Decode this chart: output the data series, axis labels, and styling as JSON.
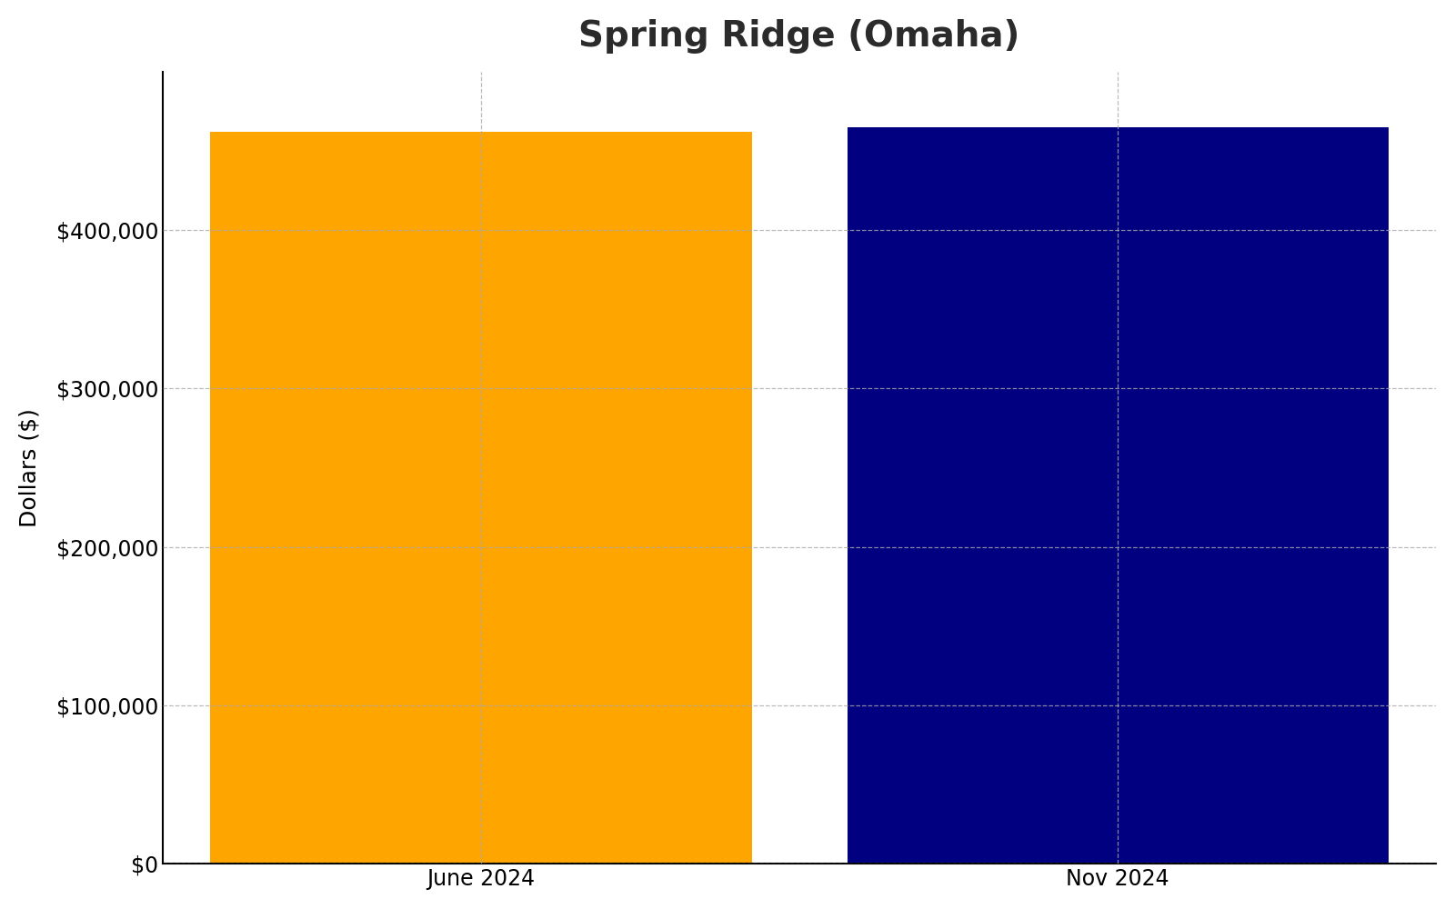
{
  "title": "Spring Ridge (Omaha)",
  "categories": [
    "June 2024",
    "Nov 2024"
  ],
  "values": [
    462000,
    465000
  ],
  "bar_colors": [
    "#FFA500",
    "#000080"
  ],
  "ylabel": "Dollars ($)",
  "ylim": [
    0,
    500000
  ],
  "yticks": [
    0,
    100000,
    200000,
    300000,
    400000
  ],
  "ytick_labels": [
    "$0",
    "$100,000",
    "$200,000",
    "$300,000",
    "$400,000"
  ],
  "background_color": "#ffffff",
  "title_fontsize": 28,
  "title_color": "#2b2b2b",
  "label_fontsize": 18,
  "tick_fontsize": 17,
  "bar_width": 0.85,
  "grid_color": "#aaaaaa",
  "grid_style": "--",
  "grid_alpha": 0.8,
  "grid_linewidth": 0.9
}
